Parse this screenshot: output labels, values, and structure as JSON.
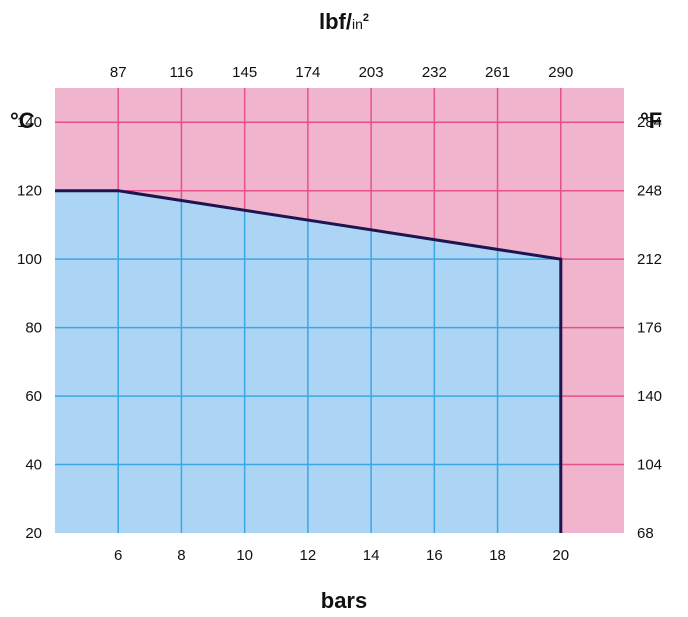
{
  "chart_data": {
    "type": "area",
    "top_axis_label": {
      "main": "lbf/",
      "sub": "in",
      "sup": "2"
    },
    "bottom_axis_label": "bars",
    "left_axis_unit": "°C",
    "right_axis_unit": "°F",
    "x_range": [
      4,
      22
    ],
    "y_range": [
      20,
      150
    ],
    "x_ticks": [
      "6",
      "8",
      "10",
      "12",
      "14",
      "16",
      "18",
      "20"
    ],
    "x_tick_values": [
      6,
      8,
      10,
      12,
      14,
      16,
      18,
      20
    ],
    "top_ticks": [
      "87",
      "116",
      "145",
      "174",
      "203",
      "232",
      "261",
      "290"
    ],
    "y_ticks": [
      "20",
      "40",
      "60",
      "80",
      "100",
      "120",
      "140"
    ],
    "y_tick_values": [
      20,
      40,
      60,
      80,
      100,
      120,
      140
    ],
    "right_ticks": [
      "68",
      "104",
      "140",
      "176",
      "212",
      "248",
      "284"
    ],
    "grid": true,
    "boundary": {
      "x": [
        4,
        6,
        20,
        20
      ],
      "y": [
        120,
        120,
        100,
        20
      ]
    },
    "colors": {
      "allowed_region": "#acd4f4",
      "outside_region": "#f0b4cc",
      "grid_on_pink": "#e6508e",
      "grid_on_blue": "#3aa8e4",
      "boundary": "#1e1550"
    }
  }
}
